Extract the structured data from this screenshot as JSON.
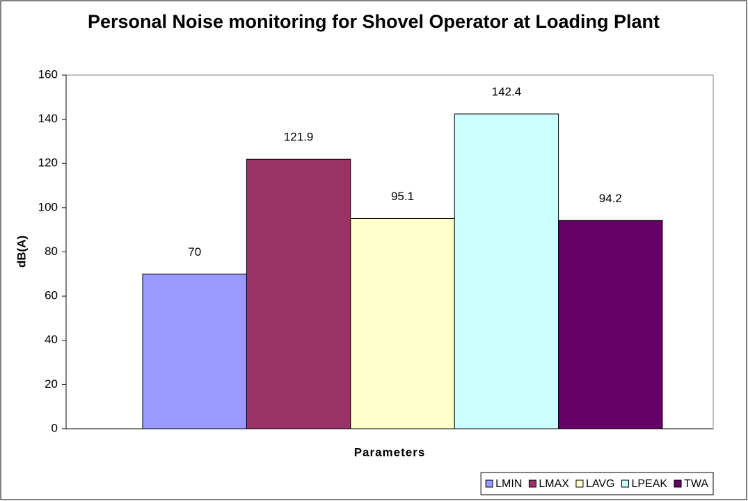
{
  "chart_data": {
    "type": "bar",
    "title": "Personal Noise monitoring for Shovel Operator at Loading Plant",
    "x_label": "Parameters",
    "y_label": "dB(A)",
    "categories": [
      null
    ],
    "series": [
      {
        "name": "LMIN",
        "color": "#9999ff",
        "values": [
          70
        ]
      },
      {
        "name": "LMAX",
        "color": "#993366",
        "values": [
          121.9
        ]
      },
      {
        "name": "LAVG",
        "color": "#ffffcc",
        "values": [
          95.1
        ]
      },
      {
        "name": "LPEAK",
        "color": "#ccffff",
        "values": [
          142.4
        ]
      },
      {
        "name": "TWA",
        "color": "#660066",
        "values": [
          94.2
        ]
      }
    ],
    "ylim": [
      0,
      160
    ],
    "yticks": [
      0,
      20,
      40,
      60,
      80,
      100,
      120,
      140,
      160
    ],
    "grid": false,
    "legend": "bottom-right"
  }
}
